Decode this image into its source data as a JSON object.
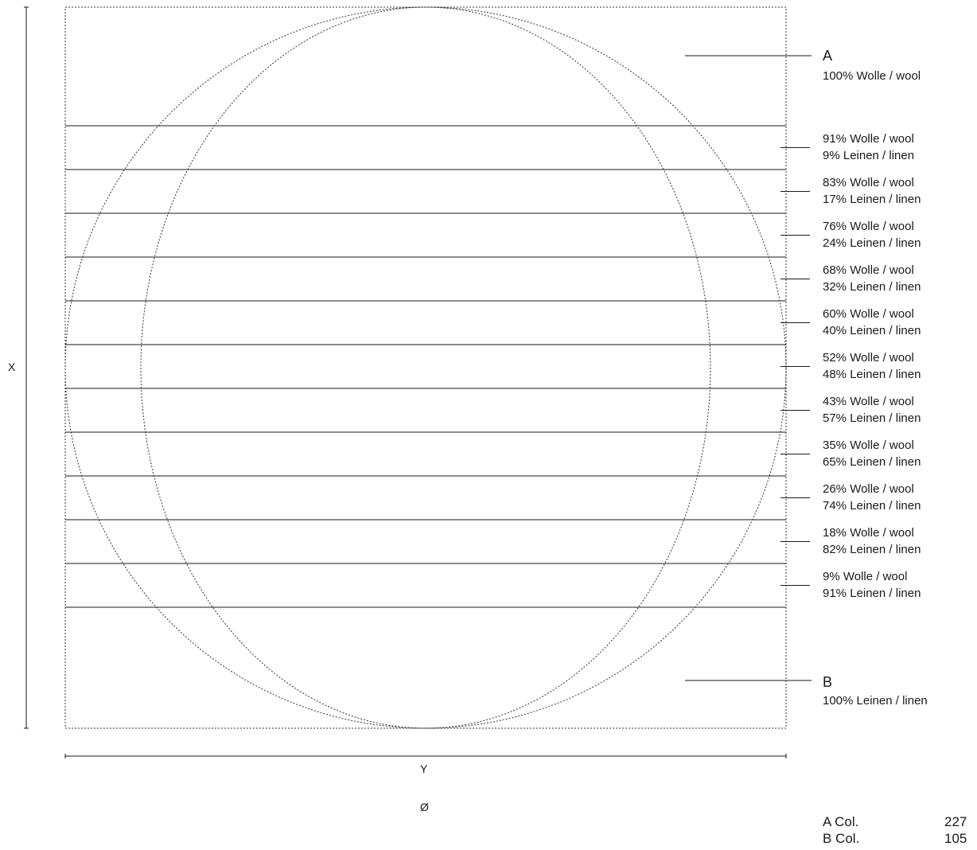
{
  "axes": {
    "x_label": "X",
    "y_label": "Y",
    "diameter_label": "Ø"
  },
  "zone_a": {
    "letter": "A",
    "composition": "100% Wolle / wool"
  },
  "zone_b": {
    "letter": "B",
    "composition": "100% Leinen / linen"
  },
  "bands": [
    {
      "wool": "91% Wolle / wool",
      "linen": "9% Leinen / linen"
    },
    {
      "wool": "83% Wolle / wool",
      "linen": "17% Leinen / linen"
    },
    {
      "wool": "76% Wolle / wool",
      "linen": "24% Leinen / linen"
    },
    {
      "wool": "68% Wolle / wool",
      "linen": "32% Leinen / linen"
    },
    {
      "wool": "60% Wolle / wool",
      "linen": "40% Leinen / linen"
    },
    {
      "wool": "52% Wolle / wool",
      "linen": "48% Leinen / linen"
    },
    {
      "wool": "43% Wolle / wool",
      "linen": "57% Leinen / linen"
    },
    {
      "wool": "35% Wolle / wool",
      "linen": "65% Leinen / linen"
    },
    {
      "wool": "26% Wolle / wool",
      "linen": "74% Leinen / linen"
    },
    {
      "wool": "18% Wolle / wool",
      "linen": "82% Leinen / linen"
    },
    {
      "wool": "9% Wolle / wool",
      "linen": "91% Leinen / linen"
    }
  ],
  "colors_table": [
    {
      "label": "A Col.",
      "value": "227"
    },
    {
      "label": "B Col.",
      "value": "105"
    }
  ]
}
